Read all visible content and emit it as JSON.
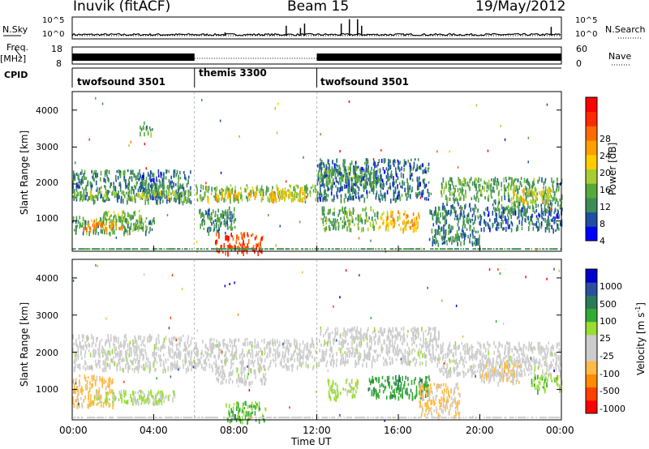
{
  "header": {
    "station": "Inuvik (fitACF)",
    "beam": "Beam 15",
    "date": "19/May/2012"
  },
  "labels": {
    "nsky": "N.Sky",
    "freq": "Freq.",
    "mhz": "[MHz]",
    "cpid": "CPID",
    "nsearch": "N.Search",
    "nave": "Nave",
    "time": "Time UT",
    "slant": "Slant Range [km]"
  },
  "noise_panel": {
    "left_ticks": [
      "10^5",
      "10^0"
    ],
    "right_ticks": [
      "10^5",
      "10^0"
    ]
  },
  "freq_panel": {
    "left_ticks": [
      "18",
      "8"
    ],
    "right_ticks": [
      "60",
      "0"
    ]
  },
  "cpid_segments": [
    {
      "label": "twofsound 3501",
      "start_h": 0,
      "end_h": 6
    },
    {
      "label": "themis 3300",
      "start_h": 6,
      "end_h": 12
    },
    {
      "label": "twofsound 3501",
      "start_h": 12,
      "end_h": 24
    }
  ],
  "colors": {
    "power": [
      "#0000ff",
      "#1e4fa0",
      "#3c8c5a",
      "#55aa3a",
      "#aacc33",
      "#ffcc00",
      "#ffa000",
      "#ff6a00",
      "#ff2a00",
      "#ff0000"
    ],
    "velocity": [
      "#ff0000",
      "#ff4000",
      "#ff8c00",
      "#ffbb44",
      "#cccccc",
      "#cccccc",
      "#99dd33",
      "#33aa33",
      "#2a7a5a",
      "#2a4fa0",
      "#0000cc"
    ]
  },
  "chart_data": [
    {
      "type": "heatmap",
      "panel": "power",
      "xlabel": "",
      "ylabel": "Slant Range [km]",
      "xlim": [
        0,
        24
      ],
      "ylim": [
        180,
        4500
      ],
      "yticks": [
        "1000",
        "2000",
        "3000",
        "4000"
      ],
      "colorbar": {
        "label": "Power [dB]",
        "ticks": [
          "28",
          "24",
          "20",
          "16",
          "12",
          "8",
          "4"
        ],
        "range": [
          0,
          30
        ]
      },
      "blobs": [
        {
          "t0": 0.0,
          "t1": 5.8,
          "r0": 1550,
          "r1": 2400,
          "v": 7
        },
        {
          "t0": 0.0,
          "t1": 5.8,
          "r0": 1650,
          "r1": 1850,
          "v": 13
        },
        {
          "t0": 0.0,
          "t1": 4.0,
          "r0": 700,
          "r1": 1150,
          "v": 9
        },
        {
          "t0": 0.5,
          "t1": 2.5,
          "r0": 800,
          "r1": 1050,
          "v": 20
        },
        {
          "t0": 1.5,
          "t1": 3.5,
          "r0": 1000,
          "r1": 1300,
          "v": 12
        },
        {
          "t0": 3.0,
          "t1": 4.5,
          "r0": 1900,
          "r1": 2300,
          "v": 6
        },
        {
          "t0": 3.3,
          "t1": 3.9,
          "r0": 3400,
          "r1": 3700,
          "v": 9
        },
        {
          "t0": 6.0,
          "t1": 12.0,
          "r0": 1600,
          "r1": 2000,
          "v": 12
        },
        {
          "t0": 7.0,
          "t1": 9.0,
          "r0": 1650,
          "r1": 1850,
          "v": 19
        },
        {
          "t0": 7.0,
          "t1": 9.3,
          "r0": 180,
          "r1": 700,
          "v": 25
        },
        {
          "t0": 6.2,
          "t1": 8.0,
          "r0": 700,
          "r1": 1400,
          "v": 8
        },
        {
          "t0": 9.5,
          "t1": 11.5,
          "r0": 1600,
          "r1": 1900,
          "v": 16
        },
        {
          "t0": 12.0,
          "t1": 17.5,
          "r0": 1600,
          "r1": 2700,
          "v": 6
        },
        {
          "t0": 12.0,
          "t1": 15.0,
          "r0": 2000,
          "r1": 2500,
          "v": 9
        },
        {
          "t0": 12.2,
          "t1": 15.0,
          "r0": 800,
          "r1": 1400,
          "v": 10
        },
        {
          "t0": 15.0,
          "t1": 17.0,
          "r0": 800,
          "r1": 1300,
          "v": 18
        },
        {
          "t0": 17.5,
          "t1": 20.0,
          "r0": 400,
          "r1": 1500,
          "v": 7
        },
        {
          "t0": 18.0,
          "t1": 20.5,
          "r0": 1600,
          "r1": 2200,
          "v": 10
        },
        {
          "t0": 20.5,
          "t1": 24.0,
          "r0": 1300,
          "r1": 2200,
          "v": 9
        },
        {
          "t0": 21.5,
          "t1": 23.5,
          "r0": 1500,
          "r1": 1900,
          "v": 16
        },
        {
          "t0": 20.0,
          "t1": 24.0,
          "r0": 800,
          "r1": 1400,
          "v": 6
        }
      ]
    },
    {
      "type": "heatmap",
      "panel": "velocity",
      "xlabel": "Time UT",
      "ylabel": "Slant Range [km]",
      "xlim": [
        0,
        24
      ],
      "ylim": [
        180,
        4500
      ],
      "xticks": [
        "00:00",
        "04:00",
        "08:00",
        "12:00",
        "16:00",
        "20:00",
        "00:00"
      ],
      "yticks": [
        "1000",
        "2000",
        "3000",
        "4000"
      ],
      "colorbar": {
        "label": "Velocity [m s",
        "label_sup": "-1",
        "label_end": "]",
        "ticks": [
          "1000",
          "500",
          "100",
          "25",
          "-25",
          "-100",
          "-500",
          "-1000"
        ],
        "range": [
          -1000,
          1000
        ]
      },
      "blobs": [
        {
          "t0": 0.0,
          "t1": 6.0,
          "r0": 1550,
          "r1": 2500,
          "v": 0
        },
        {
          "t0": 0.0,
          "t1": 2.0,
          "r0": 600,
          "r1": 1400,
          "v": -350
        },
        {
          "t0": 1.0,
          "t1": 4.5,
          "r0": 650,
          "r1": 1000,
          "v": 120
        },
        {
          "t0": 3.0,
          "t1": 5.0,
          "r0": 700,
          "r1": 1000,
          "v": 80
        },
        {
          "t0": 6.0,
          "t1": 12.0,
          "r0": 1600,
          "r1": 2400,
          "v": 0
        },
        {
          "t0": 7.0,
          "t1": 9.5,
          "r0": 1200,
          "r1": 1600,
          "v": 0
        },
        {
          "t0": 7.5,
          "t1": 9.5,
          "r0": 180,
          "r1": 700,
          "v": 300
        },
        {
          "t0": 12.0,
          "t1": 18.0,
          "r0": 1700,
          "r1": 2700,
          "v": 0
        },
        {
          "t0": 12.5,
          "t1": 14.0,
          "r0": 800,
          "r1": 1300,
          "v": 150
        },
        {
          "t0": 14.5,
          "t1": 17.5,
          "r0": 800,
          "r1": 1400,
          "v": 400
        },
        {
          "t0": 17.0,
          "t1": 19.0,
          "r0": 300,
          "r1": 1200,
          "v": -300
        },
        {
          "t0": 18.0,
          "t1": 24.0,
          "r0": 1400,
          "r1": 2300,
          "v": 0
        },
        {
          "t0": 20.0,
          "t1": 22.0,
          "r0": 1200,
          "r1": 1800,
          "v": -250
        },
        {
          "t0": 22.5,
          "t1": 24.0,
          "r0": 1000,
          "r1": 1400,
          "v": 200
        }
      ]
    },
    {
      "type": "bar",
      "panel": "noise",
      "ylabel": "N.Sky",
      "ylabel_right": "N.Search",
      "xlim": [
        0,
        24
      ],
      "baseline": 0.15,
      "spikes": [
        {
          "t": 10.5,
          "v": 0.6
        },
        {
          "t": 11.2,
          "v": 0.5
        },
        {
          "t": 11.4,
          "v": 0.7
        },
        {
          "t": 13.2,
          "v": 0.7
        },
        {
          "t": 13.6,
          "v": 0.9
        },
        {
          "t": 14.0,
          "v": 0.9
        },
        {
          "t": 14.2,
          "v": 0.6
        },
        {
          "t": 7.5,
          "v": 0.3
        },
        {
          "t": 23.5,
          "v": 0.55
        }
      ]
    },
    {
      "type": "line",
      "panel": "frequency",
      "ylabel": "Freq. [MHz]",
      "ylabel_right": "Nave",
      "xlim": [
        0,
        24
      ],
      "segments": [
        {
          "start_h": 0,
          "end_h": 6,
          "freq": "11.5 (dense)"
        },
        {
          "start_h": 6,
          "end_h": 12,
          "freq": "10.0"
        },
        {
          "start_h": 12,
          "end_h": 24,
          "freq": "11.5 (dense)"
        }
      ]
    }
  ]
}
